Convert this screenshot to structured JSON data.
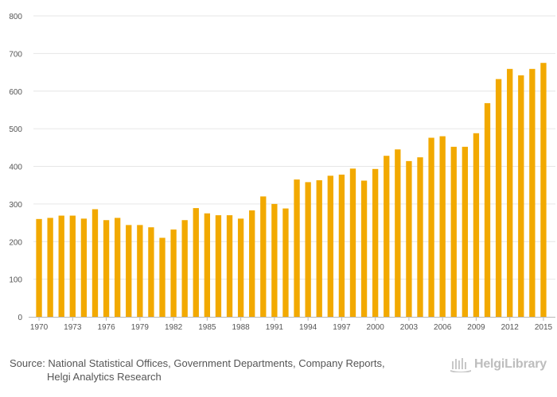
{
  "chart_data": {
    "type": "bar",
    "title": "",
    "xlabel": "",
    "ylabel": "",
    "ylim": [
      0,
      800
    ],
    "yticks": [
      0,
      100,
      200,
      300,
      400,
      500,
      600,
      700,
      800
    ],
    "bar_color": "#f2a900",
    "categories": [
      "1970",
      "1971",
      "1972",
      "1973",
      "1974",
      "1975",
      "1976",
      "1977",
      "1978",
      "1979",
      "1980",
      "1981",
      "1982",
      "1983",
      "1984",
      "1985",
      "1986",
      "1987",
      "1988",
      "1989",
      "1990",
      "1991",
      "1992",
      "1993",
      "1994",
      "1995",
      "1996",
      "1997",
      "1998",
      "1999",
      "2000",
      "2001",
      "2002",
      "2003",
      "2004",
      "2005",
      "2006",
      "2007",
      "2008",
      "2009",
      "2010",
      "2011",
      "2012",
      "2013",
      "2014",
      "2015"
    ],
    "values": [
      260,
      263,
      269,
      269,
      261,
      286,
      257,
      263,
      244,
      244,
      238,
      210,
      232,
      257,
      289,
      275,
      270,
      270,
      261,
      283,
      320,
      300,
      288,
      365,
      358,
      363,
      375,
      378,
      394,
      362,
      393,
      428,
      445,
      414,
      424,
      476,
      480,
      452,
      452,
      488,
      568,
      632,
      659,
      642,
      659,
      675
    ],
    "xtick_labels": [
      "1970",
      "1973",
      "1976",
      "1979",
      "1982",
      "1985",
      "1988",
      "1991",
      "1994",
      "1997",
      "2000",
      "2003",
      "2006",
      "2009",
      "2012",
      "2015"
    ]
  },
  "footer": {
    "source_line1": "Source: National Statistical Offices, Government Departments, Company Reports,",
    "source_line2": "Helgi Analytics Research",
    "logo_text": "HelgiLibrary",
    "logo_icon": "helgi-logo-icon"
  }
}
